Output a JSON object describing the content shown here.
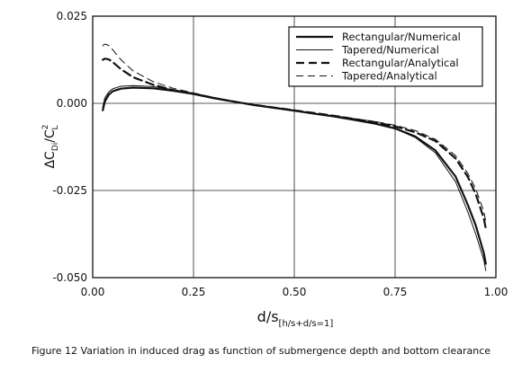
{
  "caption": "Figure 12 Variation in induced drag as function of submergence depth and bottom clearance",
  "chart_data": {
    "type": "line",
    "ylabel": {
      "main": "ΔC",
      "sub": "Di",
      "slash": "/C",
      "sup": "2",
      "sub2": "L"
    },
    "xlabel": {
      "main": "d/s",
      "sub": "[h/s+d/s=1]"
    },
    "xlim": [
      0.0,
      1.0
    ],
    "ylim": [
      -0.05,
      0.025
    ],
    "xticks": [
      0.0,
      0.25,
      0.5,
      0.75,
      1.0
    ],
    "xtick_labels": [
      "0.00",
      "0.25",
      "0.50",
      "0.75",
      "1.00"
    ],
    "yticks": [
      -0.05,
      -0.025,
      0.0,
      0.025
    ],
    "ytick_labels": [
      "-0.050",
      "-0.025",
      "0.000",
      "0.025"
    ],
    "grid": true,
    "legend_position": "top-right",
    "series": [
      {
        "name": "Rectangular/Numerical",
        "style": "solid-thick",
        "x": [
          0.025,
          0.03,
          0.04,
          0.05,
          0.07,
          0.1,
          0.15,
          0.2,
          0.25,
          0.3,
          0.35,
          0.4,
          0.45,
          0.5,
          0.55,
          0.6,
          0.65,
          0.7,
          0.75,
          0.8,
          0.85,
          0.9,
          0.93,
          0.95,
          0.97,
          0.975
        ],
        "y": [
          -0.002,
          0.0005,
          0.0025,
          0.0035,
          0.0042,
          0.0045,
          0.0043,
          0.0036,
          0.0027,
          0.0015,
          0.0005,
          -0.0005,
          -0.0013,
          -0.0021,
          -0.003,
          -0.0038,
          -0.0048,
          -0.0058,
          -0.0072,
          -0.0095,
          -0.0135,
          -0.021,
          -0.029,
          -0.035,
          -0.043,
          -0.046
        ]
      },
      {
        "name": "Tapered/Numerical",
        "style": "solid-thin",
        "x": [
          0.025,
          0.03,
          0.04,
          0.05,
          0.07,
          0.1,
          0.15,
          0.2,
          0.25,
          0.3,
          0.35,
          0.4,
          0.45,
          0.5,
          0.55,
          0.6,
          0.65,
          0.7,
          0.75,
          0.8,
          0.85,
          0.9,
          0.93,
          0.95,
          0.97,
          0.975
        ],
        "y": [
          -0.001,
          0.0015,
          0.0033,
          0.0042,
          0.0049,
          0.0051,
          0.0048,
          0.0039,
          0.0029,
          0.0017,
          0.0006,
          -0.0004,
          -0.0012,
          -0.002,
          -0.0029,
          -0.0037,
          -0.0047,
          -0.0058,
          -0.0073,
          -0.0098,
          -0.0142,
          -0.0225,
          -0.031,
          -0.0375,
          -0.045,
          -0.048
        ]
      },
      {
        "name": "Rectangular/Analytical",
        "style": "dashed-thick",
        "x": [
          0.025,
          0.03,
          0.04,
          0.05,
          0.07,
          0.1,
          0.15,
          0.2,
          0.25,
          0.3,
          0.35,
          0.4,
          0.45,
          0.5,
          0.55,
          0.6,
          0.65,
          0.7,
          0.75,
          0.8,
          0.85,
          0.9,
          0.93,
          0.95,
          0.97,
          0.975
        ],
        "y": [
          0.0125,
          0.0128,
          0.0126,
          0.0118,
          0.0098,
          0.0075,
          0.0053,
          0.0038,
          0.0027,
          0.0015,
          0.0005,
          -0.0004,
          -0.0012,
          -0.002,
          -0.0028,
          -0.0036,
          -0.0045,
          -0.0054,
          -0.0066,
          -0.0083,
          -0.0108,
          -0.0158,
          -0.021,
          -0.026,
          -0.033,
          -0.036
        ]
      },
      {
        "name": "Tapered/Analytical",
        "style": "dashed-thin",
        "x": [
          0.025,
          0.03,
          0.04,
          0.05,
          0.07,
          0.1,
          0.15,
          0.2,
          0.25,
          0.3,
          0.35,
          0.4,
          0.45,
          0.5,
          0.55,
          0.6,
          0.65,
          0.7,
          0.75,
          0.8,
          0.85,
          0.9,
          0.93,
          0.95,
          0.97,
          0.975
        ],
        "y": [
          0.0165,
          0.017,
          0.0166,
          0.0153,
          0.0125,
          0.0093,
          0.0062,
          0.0043,
          0.003,
          0.0017,
          0.0006,
          -0.0004,
          -0.0012,
          -0.0019,
          -0.0027,
          -0.0035,
          -0.0044,
          -0.0052,
          -0.0063,
          -0.0078,
          -0.0103,
          -0.015,
          -0.02,
          -0.0245,
          -0.031,
          -0.034
        ]
      }
    ]
  }
}
